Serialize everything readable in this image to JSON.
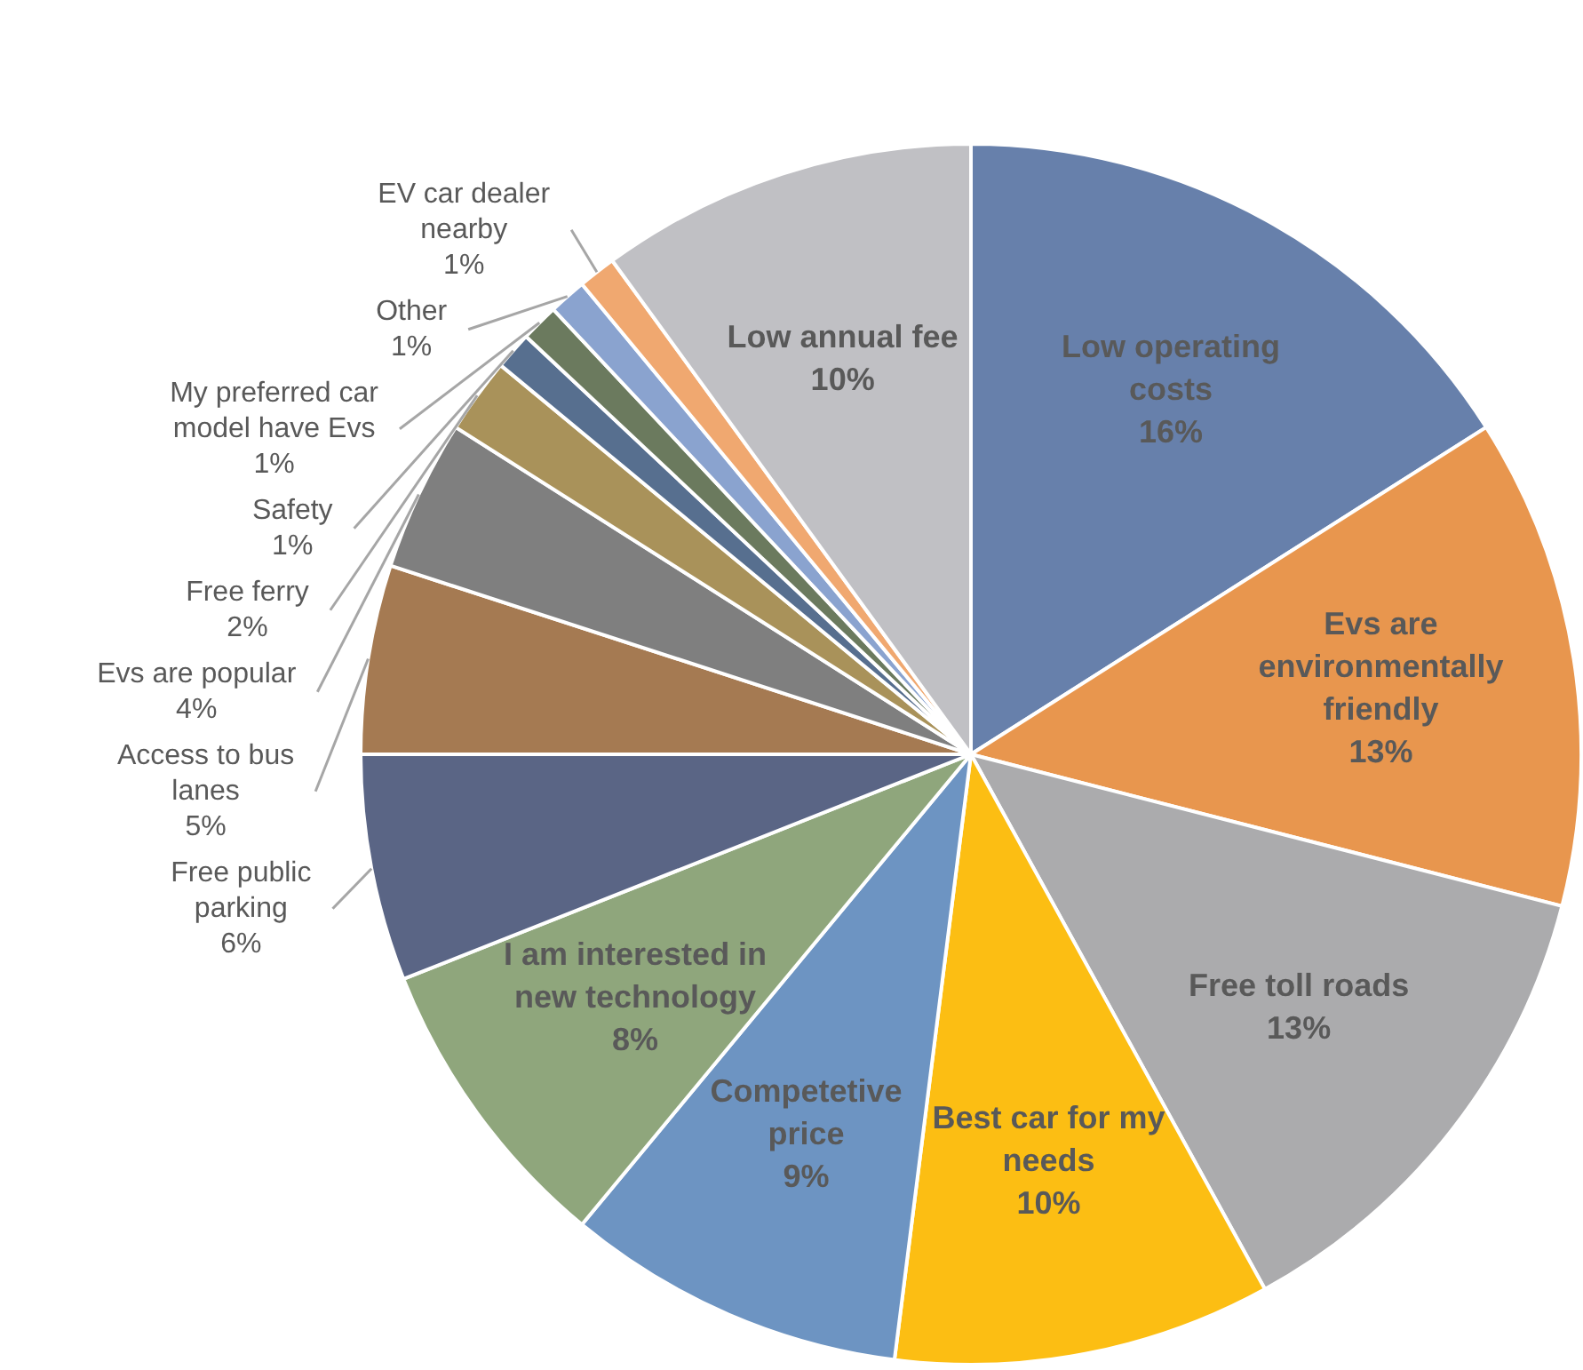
{
  "chart_data": {
    "type": "pie",
    "categories": [
      "Low operating costs",
      "Evs are environmentally friendly",
      "Free toll roads",
      "Best car for my needs",
      "Competetive price",
      "I am interested in new technology",
      "Free public parking",
      "Access to bus lanes",
      "Evs are popular",
      "Free ferry",
      "Safety",
      "My preferred car model have Evs",
      "Other",
      "EV car dealer nearby",
      "Low annual fee"
    ],
    "values": [
      16,
      13,
      13,
      10,
      9,
      8,
      6,
      5,
      4,
      2,
      1,
      1,
      1,
      1,
      10
    ],
    "value_labels": [
      "16%",
      "13%",
      "13%",
      "10%",
      "9%",
      "8%",
      "6%",
      "5%",
      "4%",
      "2%",
      "1%",
      "1%",
      "1%",
      "1%",
      "10%"
    ],
    "colors": [
      "#6780ab",
      "#e8964e",
      "#ababad",
      "#fcbe13",
      "#6d94c2",
      "#8fa67c",
      "#5a6585",
      "#a57a52",
      "#7f7f7f",
      "#a9925a",
      "#576f8f",
      "#6b7a5e",
      "#8aa3cf",
      "#f0a870",
      "#c0c0c4"
    ],
    "legend": false
  }
}
